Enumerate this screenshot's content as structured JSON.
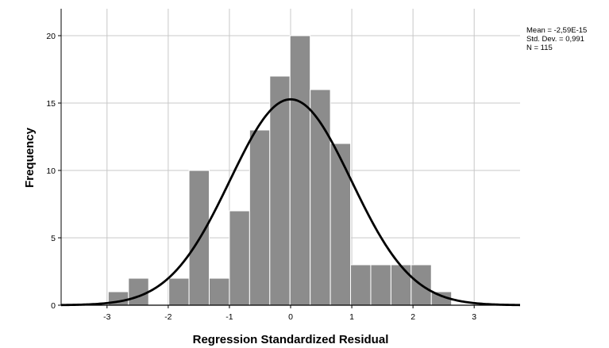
{
  "chart_data": {
    "type": "bar",
    "subtype": "histogram",
    "xlabel": "Regression Standardized Residual",
    "ylabel": "Frequency",
    "xlim": [
      -3.75,
      3.75
    ],
    "ylim": [
      0,
      22
    ],
    "xticks": [
      -3,
      -2,
      -1,
      0,
      1,
      2,
      3
    ],
    "yticks": [
      0,
      5,
      10,
      15,
      20
    ],
    "grid": true,
    "bar_color": "#8c8c8c",
    "bar_edge_color": "#ffffff",
    "curve_color": "#000000",
    "bins": [
      {
        "x0": -2.98,
        "x1": -2.65,
        "count": 1
      },
      {
        "x0": -2.65,
        "x1": -2.32,
        "count": 2
      },
      {
        "x0": -2.32,
        "x1": -1.99,
        "count": 0
      },
      {
        "x0": -1.99,
        "x1": -1.66,
        "count": 2
      },
      {
        "x0": -1.66,
        "x1": -1.33,
        "count": 10
      },
      {
        "x0": -1.33,
        "x1": -1.0,
        "count": 2
      },
      {
        "x0": -1.0,
        "x1": -0.67,
        "count": 7
      },
      {
        "x0": -0.67,
        "x1": -0.34,
        "count": 13
      },
      {
        "x0": -0.34,
        "x1": -0.01,
        "count": 17
      },
      {
        "x0": -0.01,
        "x1": 0.32,
        "count": 20
      },
      {
        "x0": 0.32,
        "x1": 0.65,
        "count": 16
      },
      {
        "x0": 0.65,
        "x1": 0.98,
        "count": 12
      },
      {
        "x0": 0.98,
        "x1": 1.31,
        "count": 3
      },
      {
        "x0": 1.31,
        "x1": 1.64,
        "count": 3
      },
      {
        "x0": 1.64,
        "x1": 1.97,
        "count": 3
      },
      {
        "x0": 1.97,
        "x1": 2.3,
        "count": 3
      },
      {
        "x0": 2.3,
        "x1": 2.63,
        "count": 1
      }
    ],
    "normal_curve": {
      "mean": 0,
      "std_dev": 0.991,
      "n": 115,
      "bin_width": 0.33
    },
    "annotations": [
      "Mean = -2,59E-15",
      "Std. Dev. = 0,991",
      "N = 115"
    ]
  }
}
